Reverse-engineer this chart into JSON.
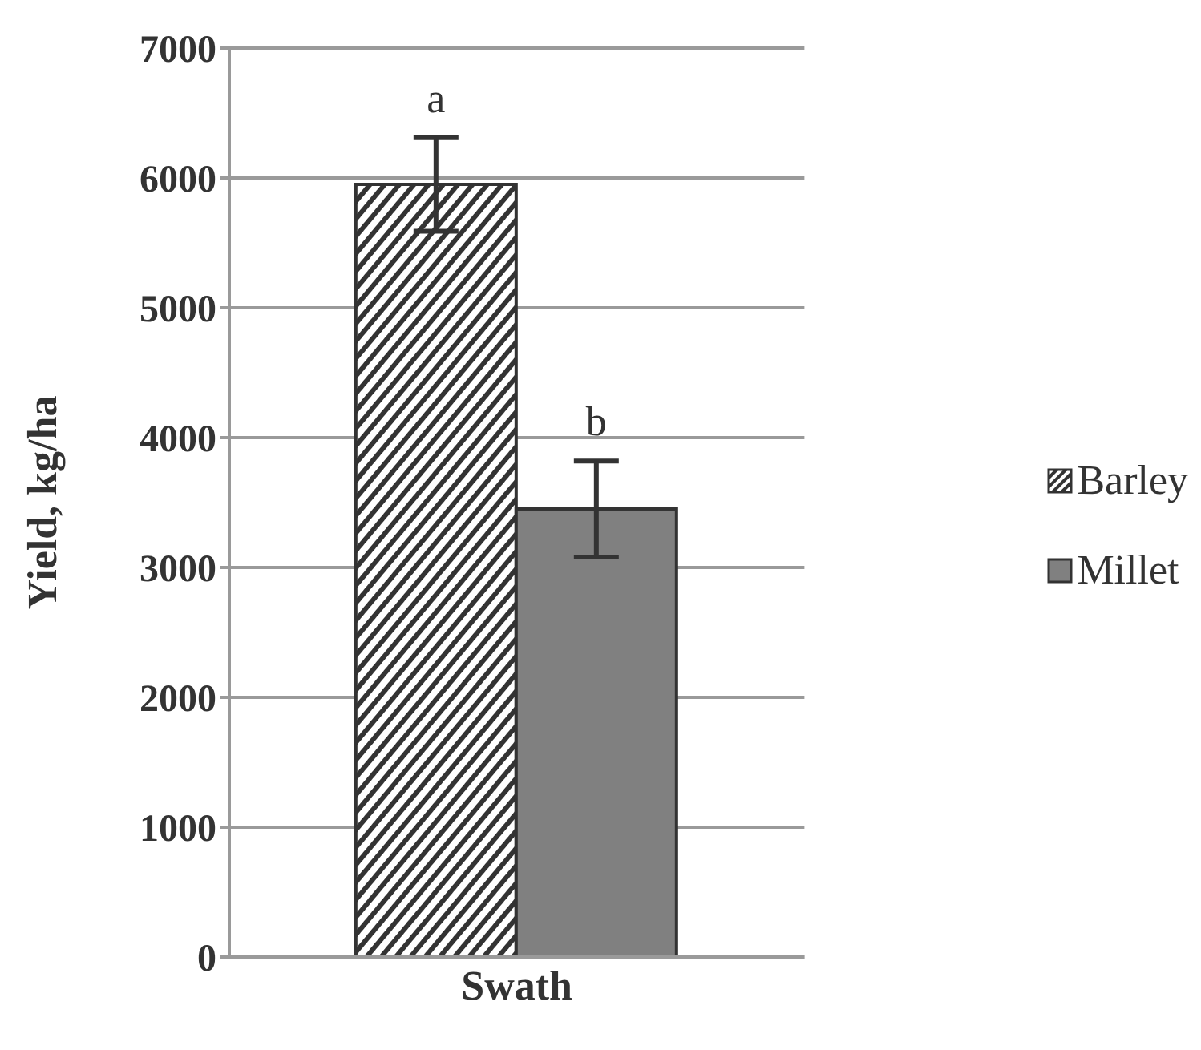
{
  "chart_data": {
    "type": "bar",
    "ylabel": "Yield, kg/ha",
    "categories": [
      "Swath"
    ],
    "series": [
      {
        "name": "Barley",
        "color": "#333333",
        "values": [
          5950
        ],
        "errors": [
          360
        ]
      },
      {
        "name": "Millet",
        "color": "#808080",
        "values": [
          3450
        ],
        "errors": [
          370
        ]
      }
    ],
    "annotations": [
      "a",
      "b"
    ],
    "ylim": [
      0,
      7000
    ],
    "yticks": [
      0,
      1000,
      2000,
      3000,
      4000,
      5000,
      6000,
      7000
    ],
    "grid": "y",
    "legend": "right"
  }
}
